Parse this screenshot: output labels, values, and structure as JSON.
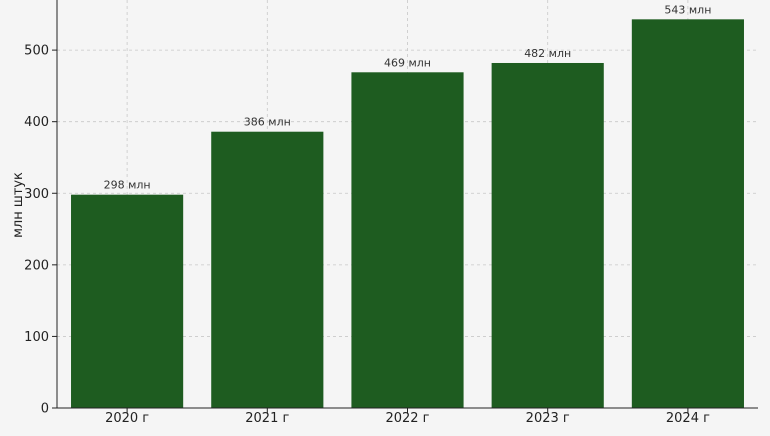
{
  "chart_data": {
    "type": "bar",
    "categories": [
      "2020 г",
      "2021 г",
      "2022 г",
      "2023 г",
      "2024 г"
    ],
    "values": [
      298,
      386,
      469,
      482,
      543
    ],
    "data_labels": [
      "298 млн",
      "386 млн",
      "469 млн",
      "482 млн",
      "543 млн"
    ],
    "ylabel": "млн штук",
    "ylim": [
      0,
      570
    ],
    "yticks": [
      0,
      100,
      200,
      300,
      400,
      500
    ],
    "grid": true,
    "bar_color": "#1e5c20"
  }
}
